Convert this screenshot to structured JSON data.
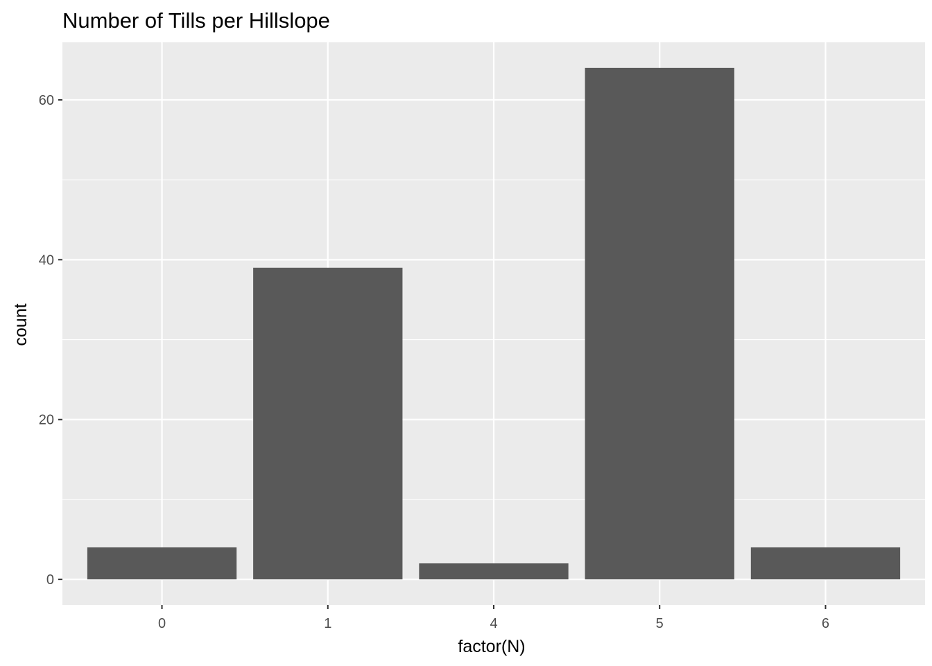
{
  "chart_data": {
    "type": "bar",
    "title": "Number of Tills per Hillslope",
    "xlabel": "factor(N)",
    "ylabel": "count",
    "categories": [
      "0",
      "1",
      "4",
      "5",
      "6"
    ],
    "values": [
      4,
      39,
      2,
      64,
      4
    ],
    "ylim": [
      -3.2,
      67.2
    ],
    "y_ticks": [
      0,
      20,
      40,
      60
    ],
    "y_tick_labels": [
      "0",
      "20",
      "40",
      "60"
    ],
    "grid": true,
    "legend": "none",
    "colors": {
      "bar": "#595959",
      "panel": "#ebebeb",
      "grid": "#ffffff",
      "tick_text": "#4d4d4d",
      "tick_mark": "#333333"
    }
  }
}
